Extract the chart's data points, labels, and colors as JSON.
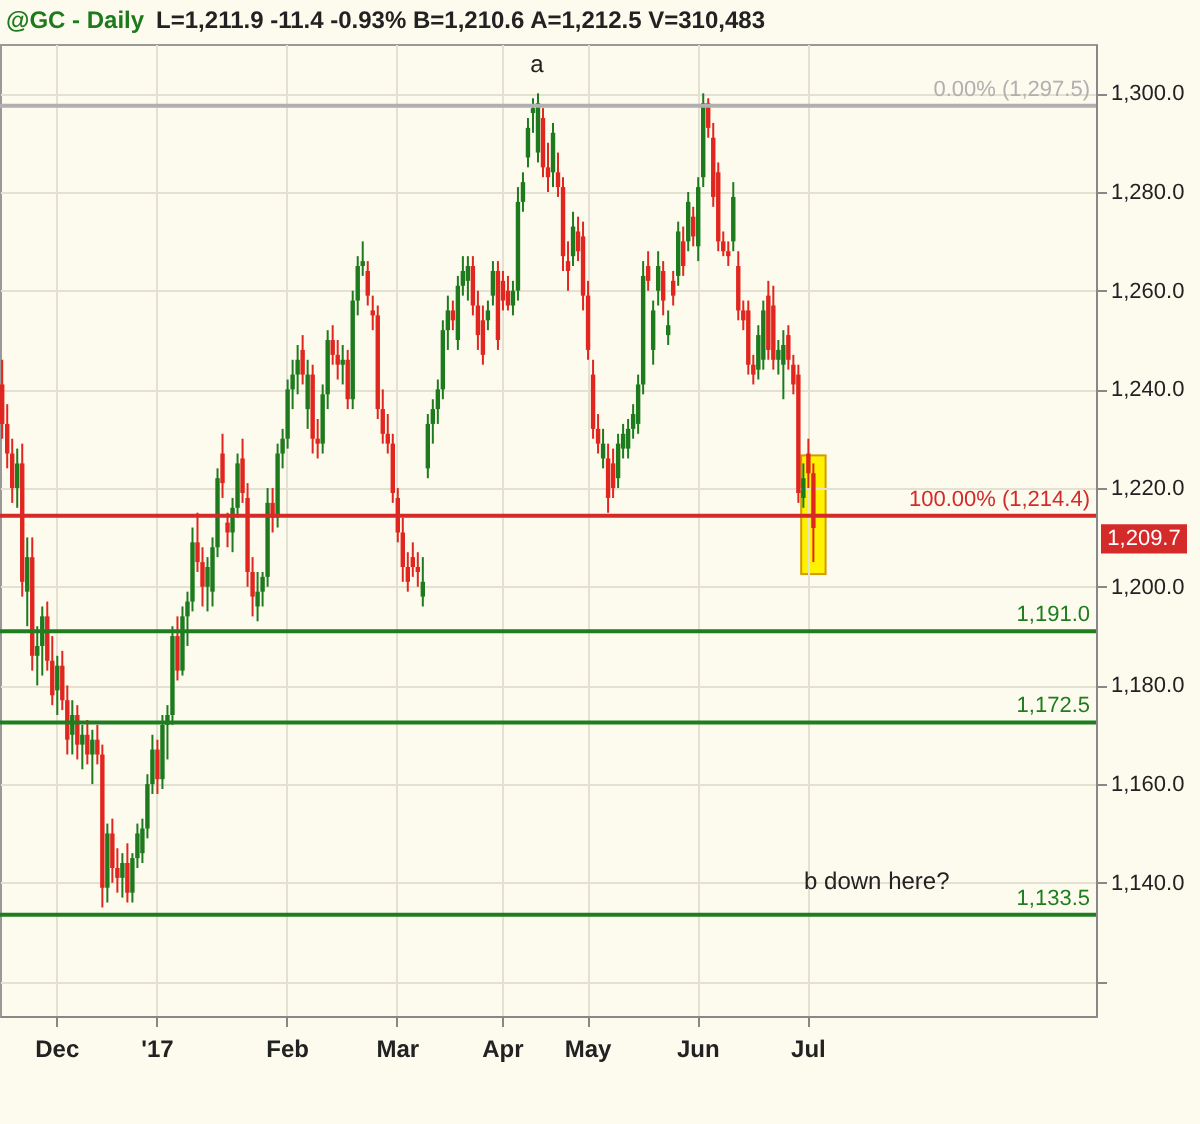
{
  "chart_data": {
    "type": "candlestick",
    "title": "@GC - Daily",
    "subtitle": "L=1,211.9  -11.4  -0.93%  B=1,210.6  A=1,212.5  V=310,483",
    "categories": [
      null,
      null,
      null,
      null,
      null,
      null,
      null,
      null,
      null,
      null,
      null,
      "Dec",
      null,
      null,
      null,
      null,
      null,
      null,
      null,
      null,
      null,
      null,
      null,
      null,
      null,
      null,
      null,
      null,
      null,
      null,
      null,
      "'17",
      null,
      null,
      null,
      null,
      null,
      null,
      null,
      null,
      null,
      null,
      null,
      null,
      null,
      null,
      null,
      null,
      null,
      null,
      null,
      null,
      null,
      null,
      null,
      null,
      null,
      "Feb",
      null,
      null,
      null,
      null,
      null,
      null,
      null,
      null,
      null,
      null,
      null,
      null,
      null,
      null,
      null,
      null,
      null,
      null,
      null,
      null,
      null,
      "Mar",
      null,
      null,
      null,
      null,
      null,
      null,
      null,
      null,
      null,
      null,
      null,
      null,
      null,
      null,
      null,
      null,
      null,
      null,
      null,
      null,
      "Apr",
      null,
      null,
      null,
      null,
      null,
      null,
      null,
      null,
      null,
      null,
      null,
      null,
      null,
      null,
      null,
      null,
      "May",
      null,
      null,
      null,
      null,
      null,
      null,
      null,
      null,
      null,
      null,
      null,
      null,
      null,
      null,
      null,
      null,
      null,
      null,
      null,
      null,
      null,
      "Jun",
      null,
      null,
      null,
      null,
      null,
      null,
      null,
      null,
      null,
      null,
      null,
      null,
      null,
      null,
      null,
      null,
      null,
      null,
      null,
      null,
      null,
      "Jul",
      null,
      null,
      null,
      null,
      null,
      null,
      null,
      null,
      null,
      null,
      null,
      null,
      null,
      null,
      null,
      null,
      null,
      null,
      null,
      null,
      null,
      null,
      null,
      null,
      null,
      null,
      null,
      null,
      null,
      null,
      null,
      null,
      null,
      null,
      null,
      null,
      null,
      null,
      null,
      null,
      null,
      null,
      null,
      null,
      null,
      null,
      null,
      null,
      null,
      null,
      null,
      null,
      null,
      null,
      null,
      null,
      null
    ],
    "ohlc": [
      [
        1241,
        1246,
        1230,
        1233
      ],
      [
        1233,
        1237,
        1224,
        1227
      ],
      [
        1227,
        1230,
        1217,
        1220
      ],
      [
        1220,
        1228,
        1216,
        1225
      ],
      [
        1225,
        1229,
        1198,
        1201
      ],
      [
        1199,
        1210,
        1192,
        1206
      ],
      [
        1206,
        1210,
        1183,
        1186
      ],
      [
        1186,
        1192,
        1180,
        1188
      ],
      [
        1188,
        1196,
        1182,
        1194
      ],
      [
        1194,
        1197,
        1183,
        1185
      ],
      [
        1185,
        1190,
        1176,
        1178
      ],
      [
        1179,
        1186,
        1174,
        1184
      ],
      [
        1184,
        1187,
        1175,
        1177
      ],
      [
        1177,
        1180,
        1166,
        1169
      ],
      [
        1170,
        1177,
        1166,
        1174
      ],
      [
        1174,
        1176,
        1165,
        1168
      ],
      [
        1168,
        1172,
        1163,
        1170
      ],
      [
        1170,
        1173,
        1164,
        1166
      ],
      [
        1166,
        1171,
        1160,
        1169
      ],
      [
        1169,
        1172,
        1164,
        1166
      ],
      [
        1166,
        1168,
        1135,
        1139
      ],
      [
        1139,
        1152,
        1136,
        1150
      ],
      [
        1150,
        1153,
        1140,
        1143
      ],
      [
        1143,
        1147,
        1138,
        1141
      ],
      [
        1141,
        1146,
        1137,
        1144
      ],
      [
        1144,
        1148,
        1136,
        1138
      ],
      [
        1138,
        1146,
        1136,
        1145
      ],
      [
        1145,
        1152,
        1143,
        1150
      ],
      [
        1146,
        1153,
        1144,
        1151
      ],
      [
        1151,
        1162,
        1149,
        1160
      ],
      [
        1160,
        1170,
        1158,
        1167
      ],
      [
        1167,
        1169,
        1158,
        1161
      ],
      [
        1161,
        1174,
        1159,
        1172
      ],
      [
        1172,
        1176,
        1165,
        1174
      ],
      [
        1174,
        1192,
        1172,
        1190
      ],
      [
        1190,
        1194,
        1181,
        1183
      ],
      [
        1183,
        1196,
        1182,
        1194
      ],
      [
        1194,
        1199,
        1188,
        1197
      ],
      [
        1197,
        1212,
        1195,
        1209
      ],
      [
        1209,
        1215,
        1203,
        1205
      ],
      [
        1205,
        1208,
        1196,
        1200
      ],
      [
        1200,
        1206,
        1195,
        1204
      ],
      [
        1199,
        1210,
        1196,
        1208
      ],
      [
        1208,
        1224,
        1206,
        1222
      ],
      [
        1227,
        1231,
        1218,
        1221
      ],
      [
        1213,
        1215,
        1208,
        1211
      ],
      [
        1211,
        1218,
        1207,
        1216
      ],
      [
        1216,
        1227,
        1214,
        1225
      ],
      [
        1226,
        1230,
        1217,
        1219
      ],
      [
        1218,
        1221,
        1200,
        1203
      ],
      [
        1203,
        1206,
        1194,
        1198
      ],
      [
        1196,
        1203,
        1193,
        1199
      ],
      [
        1199,
        1203,
        1196,
        1202
      ],
      [
        1202,
        1220,
        1200,
        1217
      ],
      [
        1217,
        1220,
        1211,
        1214
      ],
      [
        1214,
        1229,
        1212,
        1227
      ],
      [
        1227,
        1232,
        1224,
        1230
      ],
      [
        1230,
        1242,
        1228,
        1240
      ],
      [
        1240,
        1246,
        1236,
        1243
      ],
      [
        1243,
        1249,
        1239,
        1246
      ],
      [
        1248,
        1251,
        1241,
        1243
      ],
      [
        1236,
        1246,
        1232,
        1243
      ],
      [
        1243,
        1245,
        1227,
        1230
      ],
      [
        1230,
        1234,
        1226,
        1229
      ],
      [
        1229,
        1241,
        1227,
        1239
      ],
      [
        1239,
        1252,
        1236,
        1250
      ],
      [
        1250,
        1253,
        1245,
        1247
      ],
      [
        1247,
        1250,
        1242,
        1245
      ],
      [
        1245,
        1249,
        1241,
        1246
      ],
      [
        1246,
        1248,
        1236,
        1238
      ],
      [
        1238,
        1260,
        1236,
        1258
      ],
      [
        1258,
        1267,
        1255,
        1265
      ],
      [
        1265,
        1270,
        1263,
        1266
      ],
      [
        1264,
        1266,
        1257,
        1259
      ],
      [
        1256,
        1259,
        1252,
        1255
      ],
      [
        1255,
        1257,
        1234,
        1236
      ],
      [
        1236,
        1240,
        1229,
        1231
      ],
      [
        1231,
        1235,
        1227,
        1229
      ],
      [
        1229,
        1231,
        1217,
        1219
      ],
      [
        1218,
        1220,
        1209,
        1211
      ],
      [
        1211,
        1214,
        1201,
        1204
      ],
      [
        1204,
        1207,
        1199,
        1201
      ],
      [
        1206,
        1209,
        1202,
        1204
      ],
      [
        1204,
        1207,
        1200,
        1203
      ],
      [
        1198,
        1206,
        1196,
        1201
      ],
      [
        1224,
        1235,
        1222,
        1233
      ],
      [
        1233,
        1238,
        1229,
        1236
      ],
      [
        1236,
        1242,
        1233,
        1240
      ],
      [
        1240,
        1254,
        1238,
        1252
      ],
      [
        1252,
        1259,
        1248,
        1256
      ],
      [
        1256,
        1258,
        1252,
        1254
      ],
      [
        1250,
        1263,
        1248,
        1261
      ],
      [
        1261,
        1267,
        1259,
        1264
      ],
      [
        1262,
        1267,
        1258,
        1265
      ],
      [
        1265,
        1267,
        1255,
        1257
      ],
      [
        1257,
        1260,
        1248,
        1251
      ],
      [
        1254,
        1257,
        1245,
        1247
      ],
      [
        1254,
        1258,
        1252,
        1256
      ],
      [
        1259,
        1266,
        1257,
        1264
      ],
      [
        1264,
        1266,
        1248,
        1250
      ],
      [
        1262,
        1264,
        1256,
        1258
      ],
      [
        1260,
        1263,
        1256,
        1257
      ],
      [
        1257,
        1262,
        1255,
        1260
      ],
      [
        1260,
        1281,
        1258,
        1278
      ],
      [
        1278,
        1284,
        1276,
        1282
      ],
      [
        1287,
        1295,
        1285,
        1293
      ],
      [
        1296,
        1299,
        1292,
        1297
      ],
      [
        1288,
        1300,
        1286,
        1298
      ],
      [
        1295,
        1297,
        1283,
        1285
      ],
      [
        1285,
        1290,
        1280,
        1283
      ],
      [
        1284,
        1294,
        1281,
        1292
      ],
      [
        1284,
        1288,
        1279,
        1281
      ],
      [
        1281,
        1283,
        1264,
        1267
      ],
      [
        1266,
        1270,
        1260,
        1264
      ],
      [
        1267,
        1276,
        1265,
        1273
      ],
      [
        1272,
        1275,
        1266,
        1268
      ],
      [
        1271,
        1274,
        1256,
        1259
      ],
      [
        1259,
        1262,
        1246,
        1248
      ],
      [
        1243,
        1246,
        1230,
        1232
      ],
      [
        1232,
        1235,
        1227,
        1229
      ],
      [
        1226,
        1232,
        1224,
        1229
      ],
      [
        1226,
        1229,
        1215,
        1218
      ],
      [
        1225,
        1228,
        1218,
        1220
      ],
      [
        1222,
        1231,
        1220,
        1229
      ],
      [
        1228,
        1233,
        1226,
        1231
      ],
      [
        1228,
        1234,
        1226,
        1232
      ],
      [
        1232,
        1237,
        1230,
        1235
      ],
      [
        1233,
        1243,
        1231,
        1241
      ],
      [
        1241,
        1266,
        1239,
        1263
      ],
      [
        1265,
        1268,
        1260,
        1262
      ],
      [
        1248,
        1258,
        1245,
        1256
      ],
      [
        1260,
        1268,
        1257,
        1265
      ],
      [
        1264,
        1266,
        1255,
        1258
      ],
      [
        1251,
        1256,
        1249,
        1253
      ],
      [
        1262,
        1264,
        1257,
        1259
      ],
      [
        1263,
        1274,
        1261,
        1272
      ],
      [
        1270,
        1273,
        1263,
        1265
      ],
      [
        1270,
        1280,
        1268,
        1278
      ],
      [
        1275,
        1277,
        1269,
        1271
      ],
      [
        1269,
        1283,
        1266,
        1281
      ],
      [
        1283,
        1300,
        1281,
        1298
      ],
      [
        1298,
        1299,
        1291,
        1293
      ],
      [
        1291,
        1294,
        1277,
        1279
      ],
      [
        1284,
        1286,
        1268,
        1270
      ],
      [
        1270,
        1272,
        1267,
        1268
      ],
      [
        1268,
        1270,
        1265,
        1267
      ],
      [
        1270,
        1282,
        1268,
        1279
      ],
      [
        1265,
        1268,
        1254,
        1256
      ],
      [
        1256,
        1258,
        1252,
        1254
      ],
      [
        1256,
        1258,
        1243,
        1245
      ],
      [
        1245,
        1247,
        1241,
        1243
      ],
      [
        1244,
        1253,
        1242,
        1251
      ],
      [
        1246,
        1258,
        1244,
        1256
      ],
      [
        1259,
        1262,
        1246,
        1248
      ],
      [
        1257,
        1261,
        1244,
        1246
      ],
      [
        1246,
        1250,
        1243,
        1248
      ],
      [
        1245,
        1252,
        1238,
        1249
      ],
      [
        1251,
        1253,
        1244,
        1246
      ],
      [
        1245,
        1247,
        1239,
        1241
      ],
      [
        1243,
        1245,
        1217,
        1219
      ],
      [
        1218,
        1225,
        1216,
        1222
      ],
      [
        1227,
        1230,
        1220,
        1223
      ],
      [
        1223,
        1225,
        1205,
        1211.9
      ],
      null,
      null,
      null,
      null,
      null,
      null,
      null,
      null,
      null,
      null,
      null,
      null,
      null,
      null,
      null,
      null,
      null,
      null,
      null,
      null,
      null,
      null,
      null,
      null,
      null,
      null,
      null,
      null,
      null,
      null,
      null,
      null,
      null,
      null,
      null,
      null,
      null,
      null,
      null,
      null,
      null,
      null,
      null,
      null,
      null,
      null,
      null,
      null,
      null,
      null,
      null,
      null,
      null,
      null,
      null,
      null
    ],
    "ylim": [
      1113,
      1310
    ],
    "yticks": [
      {
        "value": 1120,
        "label": null
      },
      {
        "value": 1140,
        "label": "1,140.0"
      },
      {
        "value": 1160,
        "label": "1,160.0"
      },
      {
        "value": 1180,
        "label": "1,180.0"
      },
      {
        "value": 1200,
        "label": "1,200.0"
      },
      {
        "value": 1220,
        "label": "1,220.0"
      },
      {
        "value": 1240,
        "label": "1,240.0"
      },
      {
        "value": 1260,
        "label": "1,260.0"
      },
      {
        "value": 1280,
        "label": "1,280.0"
      },
      {
        "value": 1300,
        "label": "1,300.0"
      }
    ],
    "grid": true,
    "ref_lines": [
      {
        "axis": "y",
        "value": 1297.5,
        "label": "0.00% (1,297.5)",
        "color": "#b0b0b0"
      },
      {
        "axis": "y",
        "value": 1214.4,
        "label": "100.00% (1,214.4)",
        "color": "#d42a2a"
      },
      {
        "axis": "y",
        "value": 1191.0,
        "label": "1,191.0",
        "color": "#1f7d1f"
      },
      {
        "axis": "y",
        "value": 1172.5,
        "label": "1,172.5",
        "color": "#1f7d1f"
      },
      {
        "axis": "y",
        "value": 1133.5,
        "label": "1,133.5",
        "color": "#1f7d1f"
      }
    ],
    "annotations": [
      "a",
      "b down here?",
      {
        "text": "1,209.7",
        "y": 1209.7
      }
    ]
  }
}
